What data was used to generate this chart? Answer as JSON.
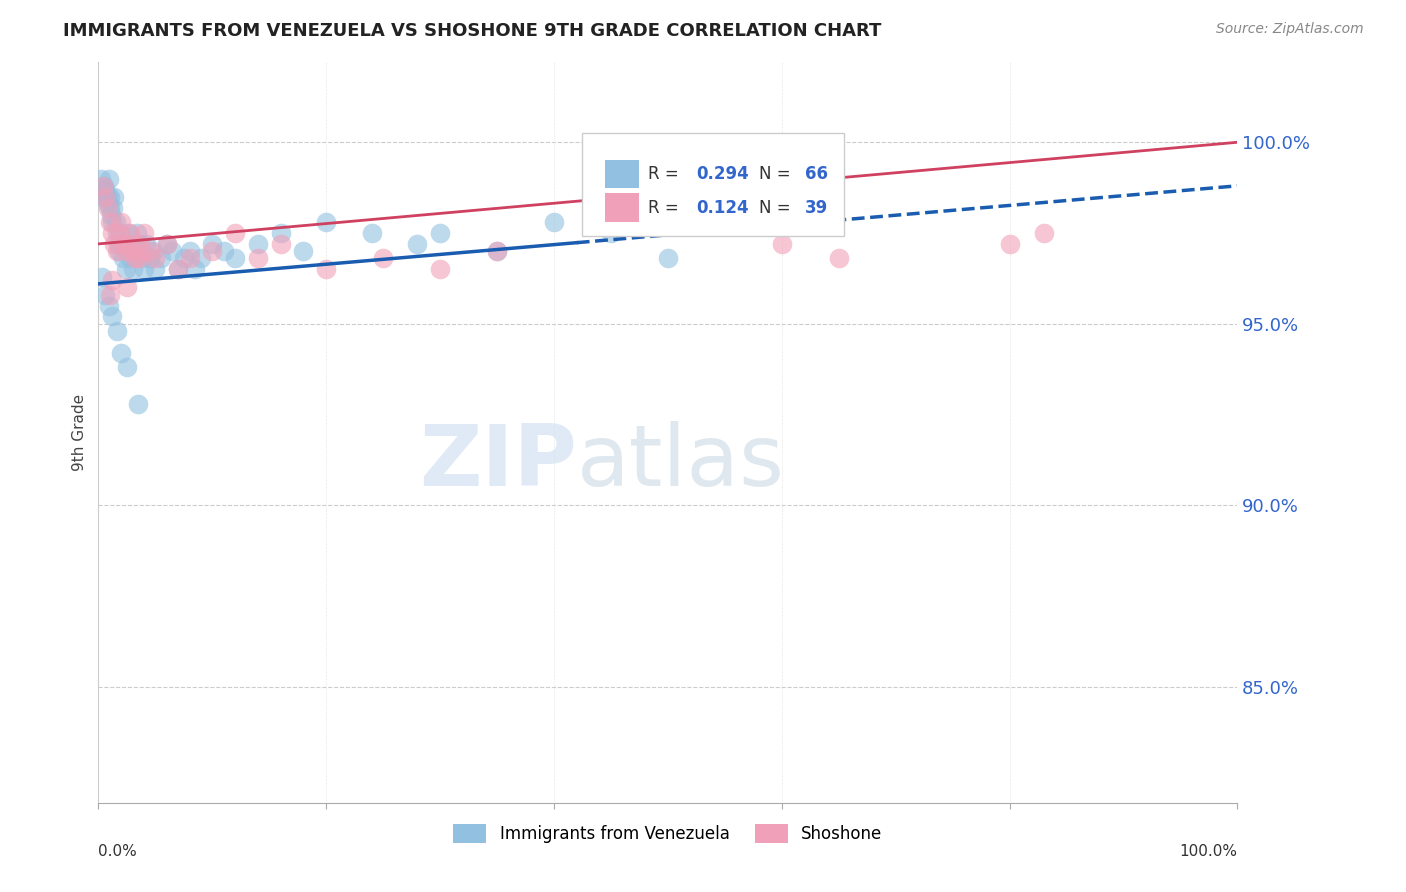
{
  "title": "IMMIGRANTS FROM VENEZUELA VS SHOSHONE 9TH GRADE CORRELATION CHART",
  "source": "Source: ZipAtlas.com",
  "ylabel": "9th Grade",
  "legend_blue_label": "Immigrants from Venezuela",
  "legend_pink_label": "Shoshone",
  "blue_color": "#92c0e0",
  "pink_color": "#f0a0b8",
  "trendline_blue": "#1a5cb0",
  "trendline_pink": "#d04060",
  "xlim": [
    0.0,
    1.0
  ],
  "ylim": [
    0.818,
    1.022
  ],
  "yticks": [
    0.85,
    0.9,
    0.95,
    1.0
  ],
  "ytick_labels": [
    "85.0%",
    "90.0%",
    "95.0%",
    "100.0%"
  ],
  "xticks": [
    0.0,
    0.2,
    0.4,
    0.6,
    0.8,
    1.0
  ],
  "blue_trendline_x0": 0.0,
  "blue_trendline_y0": 0.961,
  "blue_trendline_x1": 1.0,
  "blue_trendline_y1": 0.988,
  "blue_trendline_dash_from": 0.42,
  "pink_trendline_x0": 0.0,
  "pink_trendline_y0": 0.972,
  "pink_trendline_x1": 1.0,
  "pink_trendline_y1": 1.0,
  "blue_x": [
    0.002,
    0.003,
    0.004,
    0.005,
    0.006,
    0.007,
    0.008,
    0.008,
    0.009,
    0.01,
    0.01,
    0.011,
    0.012,
    0.013,
    0.014,
    0.015,
    0.016,
    0.017,
    0.018,
    0.019,
    0.02,
    0.022,
    0.024,
    0.025,
    0.026,
    0.028,
    0.03,
    0.032,
    0.034,
    0.036,
    0.038,
    0.04,
    0.042,
    0.045,
    0.048,
    0.05,
    0.055,
    0.06,
    0.065,
    0.07,
    0.075,
    0.08,
    0.085,
    0.09,
    0.1,
    0.11,
    0.12,
    0.14,
    0.16,
    0.18,
    0.2,
    0.24,
    0.28,
    0.3,
    0.35,
    0.4,
    0.45,
    0.5,
    0.003,
    0.006,
    0.009,
    0.012,
    0.016,
    0.02,
    0.025,
    0.035
  ],
  "blue_y": [
    0.99,
    0.987,
    0.985,
    0.988,
    0.987,
    0.985,
    0.983,
    0.985,
    0.99,
    0.985,
    0.982,
    0.98,
    0.978,
    0.982,
    0.985,
    0.978,
    0.975,
    0.972,
    0.97,
    0.975,
    0.972,
    0.968,
    0.965,
    0.972,
    0.975,
    0.968,
    0.965,
    0.97,
    0.975,
    0.972,
    0.968,
    0.965,
    0.972,
    0.968,
    0.97,
    0.965,
    0.968,
    0.972,
    0.97,
    0.965,
    0.968,
    0.97,
    0.965,
    0.968,
    0.972,
    0.97,
    0.968,
    0.972,
    0.975,
    0.97,
    0.978,
    0.975,
    0.972,
    0.975,
    0.97,
    0.978,
    0.975,
    0.968,
    0.963,
    0.958,
    0.955,
    0.952,
    0.948,
    0.942,
    0.938,
    0.928
  ],
  "pink_x": [
    0.004,
    0.006,
    0.008,
    0.01,
    0.012,
    0.014,
    0.016,
    0.018,
    0.02,
    0.022,
    0.024,
    0.026,
    0.028,
    0.03,
    0.032,
    0.034,
    0.036,
    0.038,
    0.04,
    0.045,
    0.05,
    0.06,
    0.07,
    0.08,
    0.1,
    0.12,
    0.14,
    0.16,
    0.2,
    0.25,
    0.3,
    0.35,
    0.6,
    0.65,
    0.8,
    0.83,
    0.01,
    0.012,
    0.025
  ],
  "pink_y": [
    0.988,
    0.985,
    0.982,
    0.978,
    0.975,
    0.972,
    0.97,
    0.975,
    0.978,
    0.972,
    0.97,
    0.972,
    0.975,
    0.97,
    0.968,
    0.972,
    0.968,
    0.97,
    0.975,
    0.97,
    0.968,
    0.972,
    0.965,
    0.968,
    0.97,
    0.975,
    0.968,
    0.972,
    0.965,
    0.968,
    0.965,
    0.97,
    0.972,
    0.968,
    0.972,
    0.975,
    0.958,
    0.962,
    0.96
  ]
}
